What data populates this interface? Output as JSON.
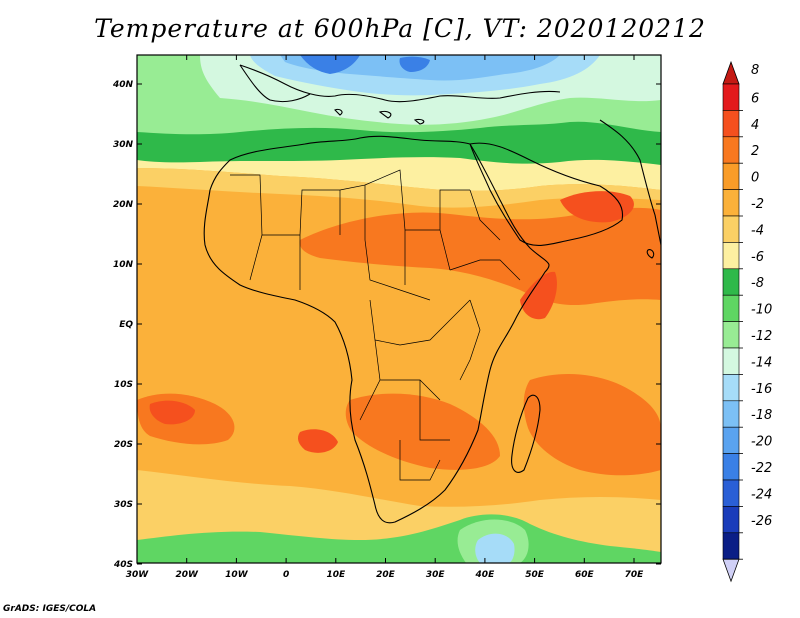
{
  "title": "Temperature at 600hPa [C], VT: 2020120212",
  "credit": "GrADS: IGES/COLA",
  "lat_labels": [
    "40N",
    "30N",
    "20N",
    "10N",
    "EQ",
    "10S",
    "20S",
    "30S",
    "40S"
  ],
  "lon_labels": [
    "30W",
    "20W",
    "10W",
    "0",
    "10E",
    "20E",
    "30E",
    "40E",
    "50E",
    "60E",
    "70E"
  ],
  "colorbar": {
    "labels": [
      "8",
      "6",
      "4",
      "2",
      "0",
      "-2",
      "-4",
      "-6",
      "-8",
      "-10",
      "-12",
      "-14",
      "-16",
      "-18",
      "-20",
      "-22",
      "-24",
      "-26"
    ],
    "colors": [
      "#e31a1c",
      "#f5501e",
      "#f8781f",
      "#f99c28",
      "#fbb13a",
      "#fbd065",
      "#fdf0a1",
      "#2fb94a",
      "#5fd663",
      "#98ec94",
      "#d4f8e0",
      "#a6dcf8",
      "#7cc0f5",
      "#5aa3f0",
      "#3a80e6",
      "#2a5fd6",
      "#1a3cba",
      "#0a1e86"
    ],
    "top_arrow_color": "#c41a14",
    "bottom_arrow_color": "#d0d0f6"
  },
  "map": {
    "colors": {
      "warm": "#fbb13a",
      "hot": "#f8781f",
      "hotter": "#f5501e",
      "mild": "#fbd065",
      "pale": "#fdf0a1",
      "green": "#2fb94a",
      "lightgreen": "#98ec94",
      "midgreen": "#5fd663",
      "cyanpale": "#d4f8e0",
      "lightblue": "#a6dcf8",
      "blue": "#7cc0f5",
      "deepblue": "#3a80e6"
    }
  }
}
